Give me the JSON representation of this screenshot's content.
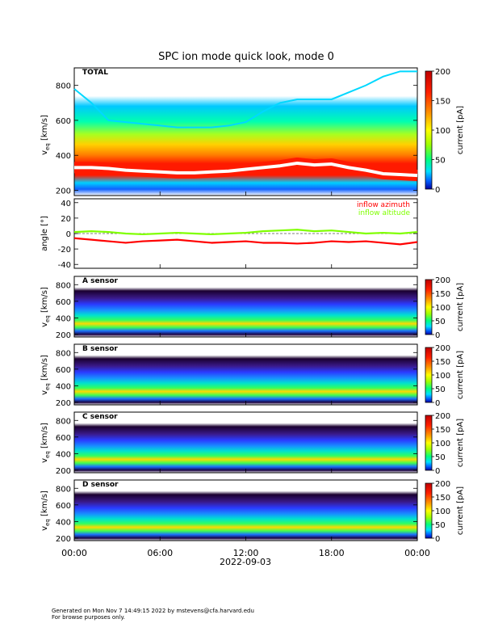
{
  "chart_data": {
    "type": "heatmap",
    "title": "SPC ion mode quick look, mode 0",
    "xlabel": "2022-09-03",
    "x_tick_labels": [
      "00:00",
      "06:00",
      "12:00",
      "18:00",
      "00:00"
    ],
    "x_range_hours": [
      0,
      24
    ],
    "spectrogram_panels": [
      {
        "id": "total",
        "label": "TOTAL",
        "ylabel_main": "v",
        "ylabel_sub": "eq",
        "ylabel_unit": "[km/s]",
        "yticks": [
          200,
          400,
          600,
          800
        ],
        "ylim": [
          170,
          900
        ],
        "colorbar": {
          "label": "current [pA]",
          "ticks": [
            0,
            50,
            100,
            150,
            200
          ],
          "range": [
            0,
            200
          ]
        },
        "core_speed_kms": [
          330,
          330,
          325,
          315,
          310,
          305,
          300,
          300,
          305,
          310,
          320,
          330,
          340,
          355,
          345,
          350,
          330,
          315,
          295,
          290,
          285
        ],
        "upper_edge_kms": [
          780,
          700,
          600,
          590,
          580,
          570,
          560,
          560,
          560,
          570,
          590,
          650,
          700,
          720,
          720,
          720,
          760,
          800,
          850,
          880,
          880
        ]
      },
      {
        "id": "a",
        "label": "A sensor",
        "ylabel_main": "v",
        "ylabel_sub": "eq",
        "ylabel_unit": "[km/s]",
        "yticks": [
          200,
          400,
          600,
          800
        ],
        "ylim": [
          170,
          900
        ],
        "colorbar": {
          "label": "current [pA]",
          "ticks": [
            0,
            50,
            100,
            150,
            200
          ],
          "range": [
            0,
            200
          ]
        }
      },
      {
        "id": "b",
        "label": "B sensor",
        "ylabel_main": "v",
        "ylabel_sub": "eq",
        "ylabel_unit": "[km/s]",
        "yticks": [
          200,
          400,
          600,
          800
        ],
        "ylim": [
          170,
          900
        ],
        "colorbar": {
          "label": "current [pA]",
          "ticks": [
            0,
            50,
            100,
            150,
            200
          ],
          "range": [
            0,
            200
          ]
        }
      },
      {
        "id": "c",
        "label": "C sensor",
        "ylabel_main": "v",
        "ylabel_sub": "eq",
        "ylabel_unit": "[km/s]",
        "yticks": [
          200,
          400,
          600,
          800
        ],
        "ylim": [
          170,
          900
        ],
        "colorbar": {
          "label": "current [pA]",
          "ticks": [
            0,
            50,
            100,
            150,
            200
          ],
          "range": [
            0,
            200
          ]
        }
      },
      {
        "id": "d",
        "label": "D sensor",
        "ylabel_main": "v",
        "ylabel_sub": "eq",
        "ylabel_unit": "[km/s]",
        "yticks": [
          200,
          400,
          600,
          800
        ],
        "ylim": [
          170,
          900
        ],
        "colorbar": {
          "label": "current [pA]",
          "ticks": [
            0,
            50,
            100,
            150,
            200
          ],
          "range": [
            0,
            200
          ]
        }
      }
    ],
    "angle_panel": {
      "ylabel": "angle [°]",
      "yticks": [
        -40,
        -20,
        0,
        20,
        40
      ],
      "ylim": [
        -45,
        45
      ],
      "series": [
        {
          "name": "inflow azimuth",
          "color": "#ff0000",
          "values": [
            -6,
            -8,
            -10,
            -12,
            -10,
            -9,
            -8,
            -10,
            -12,
            -11,
            -10,
            -12,
            -12,
            -13,
            -12,
            -10,
            -11,
            -10,
            -12,
            -14,
            -11
          ]
        },
        {
          "name": "inflow altitude",
          "color": "#7fff00",
          "values": [
            2,
            3,
            2,
            0,
            -1,
            0,
            1,
            0,
            -1,
            0,
            1,
            3,
            4,
            5,
            3,
            4,
            2,
            0,
            1,
            0,
            2
          ]
        }
      ]
    }
  },
  "footer": {
    "line1": "Generated on Mon Nov  7 14:49:15 2022 by mstevens@cfa.harvard.edu",
    "line2": "For browse purposes only."
  }
}
